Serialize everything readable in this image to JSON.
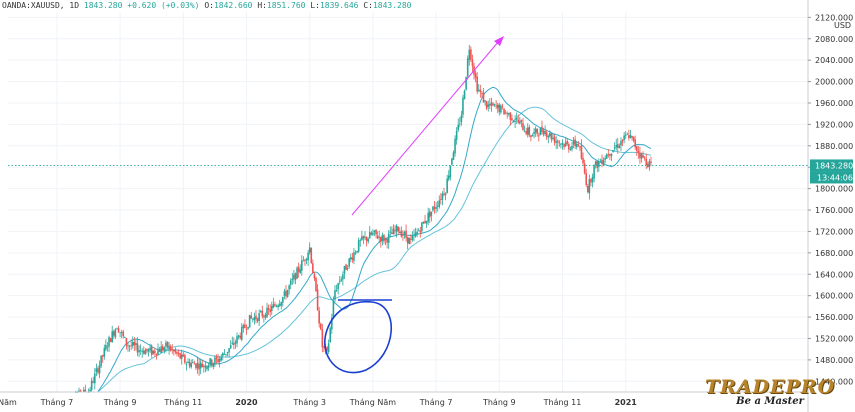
{
  "header": {
    "symbol": "OANDA:XAUUSD, 1D",
    "last": "1843.280",
    "change": "+0.620 (+0.03%)",
    "open_label": "O:",
    "open": "1842.660",
    "high_label": "H:",
    "high": "1851.760",
    "low_label": "L:",
    "low": "1839.646",
    "close_label": "C:",
    "close": "1843.280"
  },
  "logo": {
    "name": "TRADEPRO",
    "tagline": "Be a Master"
  },
  "colors": {
    "up": "#26a69a",
    "down": "#ef5350",
    "ma_fast": "#35a8c9",
    "ma_slow": "#65c3d9",
    "price_tag": "#26a69a",
    "arrow": "#e040fb",
    "circle": "#1a3fd0",
    "grid": "#f0f3f7"
  },
  "chart_data": {
    "type": "candlestick",
    "y_unit": "USD",
    "ylim": [
      1420,
      2130
    ],
    "y_ticks": [
      1440,
      1480,
      1520,
      1560,
      1600,
      1640,
      1680,
      1720,
      1760,
      1800,
      1840,
      1880,
      1920,
      1960,
      2000,
      2040,
      2080,
      2120
    ],
    "y_tick_labels": [
      "1440.000",
      "1480.000",
      "1520.000",
      "1560.000",
      "1600.000",
      "1640.000",
      "1680.000",
      "1720.000",
      "1760.000",
      "1800.000",
      "1840.000",
      "1880.000",
      "1920.000",
      "1960.000",
      "2000.000",
      "2040.000",
      "2080.000",
      "2120.000"
    ],
    "x_ticks": [
      {
        "label": "Tháng Năm",
        "month": -3
      },
      {
        "label": "Tháng 7",
        "month": -1
      },
      {
        "label": "Tháng 9",
        "month": 1
      },
      {
        "label": "Tháng 11",
        "month": 3
      },
      {
        "label": "2020",
        "month": 5
      },
      {
        "label": "Tháng 3",
        "month": 7
      },
      {
        "label": "Tháng Năm",
        "month": 9
      },
      {
        "label": "Tháng 7",
        "month": 11
      },
      {
        "label": "Tháng 9",
        "month": 13
      },
      {
        "label": "Tháng 11",
        "month": 15
      },
      {
        "label": "2021",
        "month": 17
      }
    ],
    "price_path": [
      [
        -0.7,
        1395
      ],
      [
        -0.5,
        1410
      ],
      [
        0.0,
        1420
      ],
      [
        0.6,
        1510
      ],
      [
        0.9,
        1545
      ],
      [
        1.2,
        1510
      ],
      [
        1.6,
        1500
      ],
      [
        2.0,
        1495
      ],
      [
        2.5,
        1505
      ],
      [
        3.1,
        1475
      ],
      [
        3.6,
        1470
      ],
      [
        4.1,
        1480
      ],
      [
        4.6,
        1510
      ],
      [
        5.1,
        1555
      ],
      [
        5.7,
        1570
      ],
      [
        6.2,
        1600
      ],
      [
        6.8,
        1665
      ],
      [
        7.0,
        1690
      ],
      [
        7.25,
        1580
      ],
      [
        7.4,
        1505
      ],
      [
        7.55,
        1490
      ],
      [
        7.8,
        1610
      ],
      [
        8.2,
        1660
      ],
      [
        8.6,
        1700
      ],
      [
        9.0,
        1715
      ],
      [
        9.4,
        1705
      ],
      [
        9.8,
        1725
      ],
      [
        10.2,
        1700
      ],
      [
        10.7,
        1745
      ],
      [
        11.0,
        1770
      ],
      [
        11.3,
        1800
      ],
      [
        11.5,
        1860
      ],
      [
        11.8,
        1940
      ],
      [
        12.05,
        2065
      ],
      [
        12.3,
        1990
      ],
      [
        12.6,
        1955
      ],
      [
        13.0,
        1950
      ],
      [
        13.5,
        1930
      ],
      [
        14.0,
        1900
      ],
      [
        14.4,
        1910
      ],
      [
        14.8,
        1890
      ],
      [
        15.2,
        1880
      ],
      [
        15.5,
        1885
      ],
      [
        15.8,
        1800
      ],
      [
        16.0,
        1840
      ],
      [
        16.5,
        1870
      ],
      [
        16.9,
        1890
      ],
      [
        17.1,
        1900
      ],
      [
        17.5,
        1860
      ],
      [
        17.8,
        1843.28
      ]
    ],
    "ma_fast_period": 20,
    "ma_slow_period": 50,
    "current_price": "1843.280",
    "countdown": "13:44:06"
  }
}
